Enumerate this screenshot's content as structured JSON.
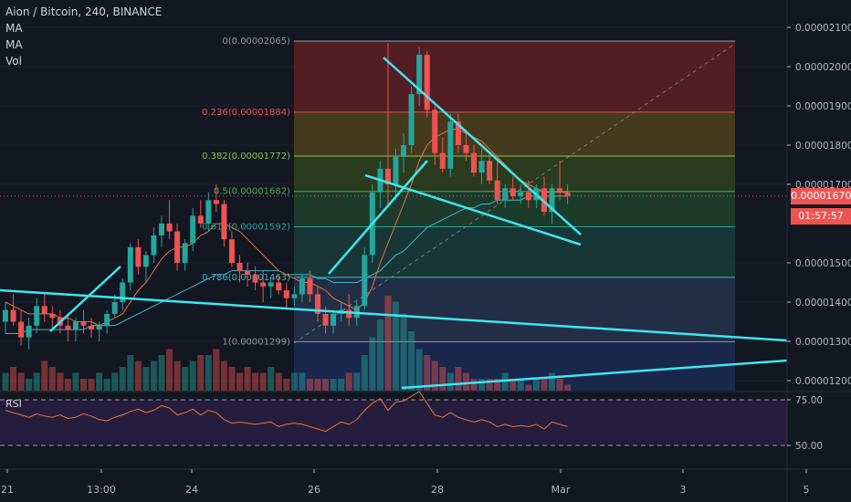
{
  "header": {
    "symbol_line": "Aion / Bitcoin, 240, BINANCE",
    "indicators": [
      "MA",
      "MA",
      "Vol"
    ]
  },
  "last_price": {
    "label": "0.00001670",
    "countdown": "01:57:57"
  },
  "rsi_label": "RSI",
  "colors": {
    "background": "#131722",
    "up": "#26a69a",
    "down": "#ef5350",
    "trendline": "#3ee6f0",
    "ma_fast": "#e8753a",
    "ma_slow": "#3fb8c8",
    "rsi_line": "#e8753a",
    "last_price_bg": "#ef5350",
    "countdown_bg": "#ef5350"
  },
  "chart_data": [
    {
      "type": "candlestick",
      "title": "Aion / Bitcoin, 240, BINANCE",
      "y_axis_ticks": [
        "0.00002100",
        "0.00002000",
        "0.00001900",
        "0.00001800",
        "0.00001700",
        "0.00001500",
        "0.00001400",
        "0.00001300",
        "0.00001200"
      ],
      "x_axis_ticks": [
        "21",
        "13:00",
        "24",
        "26",
        "28",
        "Mar",
        "3",
        "5"
      ],
      "ylim": [
        1.18e-05,
        2.15e-05
      ],
      "fibonacci_levels": [
        {
          "label": "0(0.00002065)",
          "value": 2.065e-05,
          "fill": "#5a1f24"
        },
        {
          "label": "0.236(0.00001884)",
          "value": 1.884e-05,
          "fill": "#4a3e1e"
        },
        {
          "label": "0.382(0.00001772)",
          "value": 1.772e-05,
          "fill": "#2f3f1e"
        },
        {
          "label": "0.5(0.00001682)",
          "value": 1.682e-05,
          "fill": "#1e3f2c"
        },
        {
          "label": "0.618(0.00001592)",
          "value": 1.592e-05,
          "fill": "#1b3a3a"
        },
        {
          "label": "0.786(0.00001463)",
          "value": 1.463e-05,
          "fill": "#25314a"
        },
        {
          "label": "1(0.00001299)",
          "value": 1.299e-05,
          "fill": "#2a2a3a"
        }
      ],
      "candles": [
        [
          1.35,
          1.4,
          1.32,
          1.38
        ],
        [
          1.38,
          1.42,
          1.34,
          1.35
        ],
        [
          1.35,
          1.38,
          1.29,
          1.31
        ],
        [
          1.31,
          1.36,
          1.28,
          1.34
        ],
        [
          1.34,
          1.41,
          1.32,
          1.39
        ],
        [
          1.39,
          1.42,
          1.35,
          1.37
        ],
        [
          1.37,
          1.39,
          1.33,
          1.36
        ],
        [
          1.36,
          1.38,
          1.32,
          1.34
        ],
        [
          1.34,
          1.37,
          1.3,
          1.33
        ],
        [
          1.33,
          1.36,
          1.3,
          1.35
        ],
        [
          1.35,
          1.38,
          1.32,
          1.34
        ],
        [
          1.34,
          1.36,
          1.31,
          1.33
        ],
        [
          1.33,
          1.35,
          1.3,
          1.34
        ],
        [
          1.34,
          1.38,
          1.32,
          1.37
        ],
        [
          1.37,
          1.42,
          1.36,
          1.4
        ],
        [
          1.4,
          1.46,
          1.38,
          1.45
        ],
        [
          1.45,
          1.55,
          1.43,
          1.54
        ],
        [
          1.54,
          1.56,
          1.47,
          1.49
        ],
        [
          1.49,
          1.53,
          1.45,
          1.52
        ],
        [
          1.52,
          1.59,
          1.5,
          1.57
        ],
        [
          1.57,
          1.62,
          1.54,
          1.6
        ],
        [
          1.6,
          1.66,
          1.56,
          1.58
        ],
        [
          1.58,
          1.6,
          1.48,
          1.5
        ],
        [
          1.5,
          1.56,
          1.48,
          1.55
        ],
        [
          1.55,
          1.64,
          1.53,
          1.62
        ],
        [
          1.62,
          1.66,
          1.59,
          1.6
        ],
        [
          1.6,
          1.68,
          1.58,
          1.66
        ],
        [
          1.66,
          1.7,
          1.63,
          1.65
        ],
        [
          1.65,
          1.66,
          1.54,
          1.56
        ],
        [
          1.56,
          1.58,
          1.49,
          1.5
        ],
        [
          1.5,
          1.52,
          1.45,
          1.48
        ],
        [
          1.48,
          1.5,
          1.44,
          1.47
        ],
        [
          1.47,
          1.49,
          1.43,
          1.45
        ],
        [
          1.45,
          1.48,
          1.4,
          1.44
        ],
        [
          1.44,
          1.46,
          1.41,
          1.45
        ],
        [
          1.45,
          1.47,
          1.42,
          1.43
        ],
        [
          1.43,
          1.45,
          1.38,
          1.41
        ],
        [
          1.41,
          1.44,
          1.39,
          1.42
        ],
        [
          1.42,
          1.47,
          1.4,
          1.46
        ],
        [
          1.46,
          1.48,
          1.4,
          1.42
        ],
        [
          1.42,
          1.44,
          1.35,
          1.37
        ],
        [
          1.37,
          1.39,
          1.32,
          1.34
        ],
        [
          1.34,
          1.38,
          1.32,
          1.37
        ],
        [
          1.37,
          1.4,
          1.35,
          1.38
        ],
        [
          1.38,
          1.42,
          1.34,
          1.36
        ],
        [
          1.36,
          1.4,
          1.34,
          1.39
        ],
        [
          1.39,
          1.54,
          1.38,
          1.52
        ],
        [
          1.52,
          1.7,
          1.5,
          1.68
        ],
        [
          1.68,
          1.76,
          1.64,
          1.74
        ],
        [
          1.74,
          2.06,
          1.64,
          1.7
        ],
        [
          1.7,
          1.79,
          1.66,
          1.77
        ],
        [
          1.77,
          1.83,
          1.73,
          1.8
        ],
        [
          1.8,
          1.95,
          1.78,
          1.93
        ],
        [
          1.93,
          2.05,
          1.9,
          2.03
        ],
        [
          2.03,
          2.04,
          1.87,
          1.89
        ],
        [
          1.89,
          1.9,
          1.75,
          1.78
        ],
        [
          1.78,
          1.82,
          1.73,
          1.74
        ],
        [
          1.74,
          1.88,
          1.72,
          1.86
        ],
        [
          1.86,
          1.88,
          1.78,
          1.8
        ],
        [
          1.8,
          1.84,
          1.76,
          1.78
        ],
        [
          1.78,
          1.8,
          1.72,
          1.73
        ],
        [
          1.73,
          1.79,
          1.7,
          1.76
        ],
        [
          1.76,
          1.78,
          1.7,
          1.71
        ],
        [
          1.71,
          1.76,
          1.65,
          1.66
        ],
        [
          1.66,
          1.7,
          1.64,
          1.69
        ],
        [
          1.69,
          1.72,
          1.66,
          1.67
        ],
        [
          1.67,
          1.7,
          1.65,
          1.68
        ],
        [
          1.68,
          1.71,
          1.64,
          1.66
        ],
        [
          1.66,
          1.7,
          1.64,
          1.69
        ],
        [
          1.69,
          1.72,
          1.62,
          1.63
        ],
        [
          1.63,
          1.7,
          1.6,
          1.69
        ],
        [
          1.69,
          1.76,
          1.66,
          1.68
        ],
        [
          1.68,
          1.7,
          1.65,
          1.67
        ]
      ],
      "ma_fast_values": [
        1.4,
        1.39,
        1.38,
        1.37,
        1.37,
        1.37,
        1.37,
        1.36,
        1.36,
        1.35,
        1.35,
        1.35,
        1.34,
        1.35,
        1.36,
        1.37,
        1.4,
        1.43,
        1.45,
        1.48,
        1.51,
        1.53,
        1.54,
        1.54,
        1.55,
        1.57,
        1.58,
        1.6,
        1.6,
        1.59,
        1.58,
        1.56,
        1.54,
        1.52,
        1.5,
        1.48,
        1.47,
        1.46,
        1.45,
        1.45,
        1.44,
        1.43,
        1.41,
        1.4,
        1.39,
        1.38,
        1.4,
        1.44,
        1.5,
        1.55,
        1.6,
        1.65,
        1.7,
        1.76,
        1.8,
        1.82,
        1.83,
        1.84,
        1.84,
        1.83,
        1.82,
        1.81,
        1.79,
        1.77,
        1.75,
        1.73,
        1.71,
        1.7,
        1.69,
        1.68,
        1.68,
        1.68,
        1.68
      ],
      "ma_slow_values": [
        1.32,
        1.32,
        1.32,
        1.33,
        1.33,
        1.33,
        1.33,
        1.33,
        1.33,
        1.33,
        1.33,
        1.34,
        1.34,
        1.34,
        1.34,
        1.35,
        1.36,
        1.37,
        1.38,
        1.39,
        1.4,
        1.41,
        1.42,
        1.43,
        1.44,
        1.45,
        1.46,
        1.47,
        1.47,
        1.48,
        1.48,
        1.48,
        1.48,
        1.48,
        1.48,
        1.48,
        1.47,
        1.47,
        1.47,
        1.47,
        1.46,
        1.46,
        1.45,
        1.45,
        1.45,
        1.45,
        1.46,
        1.47,
        1.48,
        1.5,
        1.52,
        1.53,
        1.55,
        1.57,
        1.59,
        1.6,
        1.61,
        1.62,
        1.63,
        1.64,
        1.64,
        1.65,
        1.65,
        1.66,
        1.66,
        1.66,
        1.66,
        1.67,
        1.67,
        1.67,
        1.67,
        1.67,
        1.67
      ],
      "volume_values": [
        3,
        4,
        3,
        2,
        3,
        5,
        4,
        3,
        2,
        3,
        2,
        2,
        3,
        2,
        3,
        4,
        6,
        5,
        4,
        5,
        6,
        7,
        5,
        4,
        5,
        6,
        6,
        7,
        5,
        4,
        3,
        4,
        3,
        3,
        4,
        3,
        2,
        3,
        3,
        2,
        2,
        2,
        2,
        2,
        3,
        3,
        6,
        9,
        12,
        16,
        15,
        13,
        10,
        7,
        6,
        5,
        4,
        3,
        4,
        3,
        2,
        2,
        2,
        2,
        3,
        2,
        2,
        1,
        2,
        2,
        3,
        2,
        1
      ]
    },
    {
      "type": "line",
      "title": "RSI",
      "y_axis_ticks": [
        "75.00",
        "50.00"
      ],
      "ylim": [
        30,
        90
      ],
      "values": [
        66,
        64,
        62,
        60,
        63,
        61,
        60,
        62,
        59,
        60,
        63,
        61,
        58,
        57,
        60,
        62,
        65,
        67,
        64,
        66,
        70,
        68,
        62,
        64,
        67,
        62,
        66,
        64,
        58,
        55,
        56,
        55,
        54,
        55,
        56,
        52,
        54,
        55,
        54,
        52,
        50,
        48,
        52,
        56,
        54,
        58,
        66,
        72,
        76,
        66,
        73,
        74,
        78,
        82,
        72,
        62,
        60,
        64,
        60,
        58,
        56,
        58,
        56,
        52,
        54,
        52,
        53,
        52,
        54,
        50,
        56,
        54,
        52
      ]
    }
  ]
}
